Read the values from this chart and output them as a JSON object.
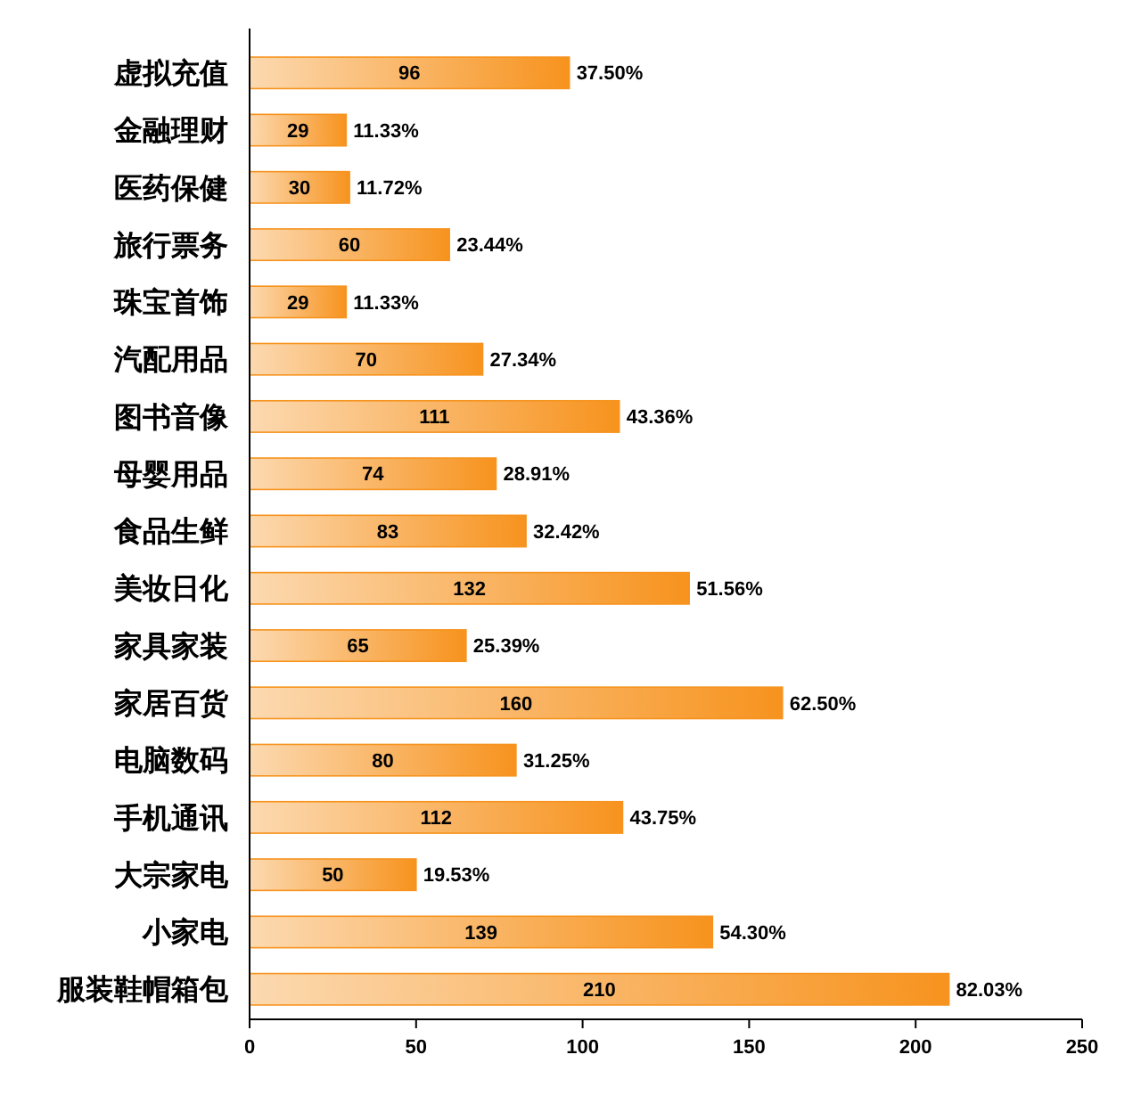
{
  "chart_data": {
    "type": "bar",
    "orientation": "horizontal",
    "categories": [
      "虚拟充值",
      "金融理财",
      "医药保健",
      "旅行票务",
      "珠宝首饰",
      "汽配用品",
      "图书音像",
      "母婴用品",
      "食品生鲜",
      "美妆日化",
      "家具家装",
      "家居百货",
      "电脑数码",
      "手机通讯",
      "大宗家电",
      "小家电",
      "服装鞋帽箱包"
    ],
    "values": [
      96,
      29,
      30,
      60,
      29,
      70,
      111,
      74,
      83,
      132,
      65,
      160,
      80,
      112,
      50,
      139,
      210
    ],
    "color": "#f7931e",
    "data_labels": true,
    "xlim": [
      0,
      250
    ],
    "xticks": [
      0,
      50,
      100,
      150,
      200,
      250
    ],
    "grid": false,
    "annotations": [
      {
        "text": "37.50%",
        "x": 96,
        "y": "虚拟充值"
      },
      {
        "text": "11.33%",
        "x": 29,
        "y": "金融理财"
      },
      {
        "text": "11.72%",
        "x": 30,
        "y": "医药保健"
      },
      {
        "text": "23.44%",
        "x": 60,
        "y": "旅行票务"
      },
      {
        "text": "11.33%",
        "x": 29,
        "y": "珠宝首饰"
      },
      {
        "text": "27.34%",
        "x": 70,
        "y": "汽配用品"
      },
      {
        "text": "43.36%",
        "x": 111,
        "y": "图书音像"
      },
      {
        "text": "28.91%",
        "x": 74,
        "y": "母婴用品"
      },
      {
        "text": "32.42%",
        "x": 83,
        "y": "食品生鲜"
      },
      {
        "text": "51.56%",
        "x": 132,
        "y": "美妆日化"
      },
      {
        "text": "25.39%",
        "x": 65,
        "y": "家具家装"
      },
      {
        "text": "62.50%",
        "x": 160,
        "y": "家居百货"
      },
      {
        "text": "31.25%",
        "x": 80,
        "y": "电脑数码"
      },
      {
        "text": "43.75%",
        "x": 112,
        "y": "手机通讯"
      },
      {
        "text": "19.53%",
        "x": 50,
        "y": "大宗家电"
      },
      {
        "text": "54.30%",
        "x": 139,
        "y": "小家电"
      },
      {
        "text": "82.03%",
        "x": 210,
        "y": "服装鞋帽箱包"
      }
    ]
  }
}
